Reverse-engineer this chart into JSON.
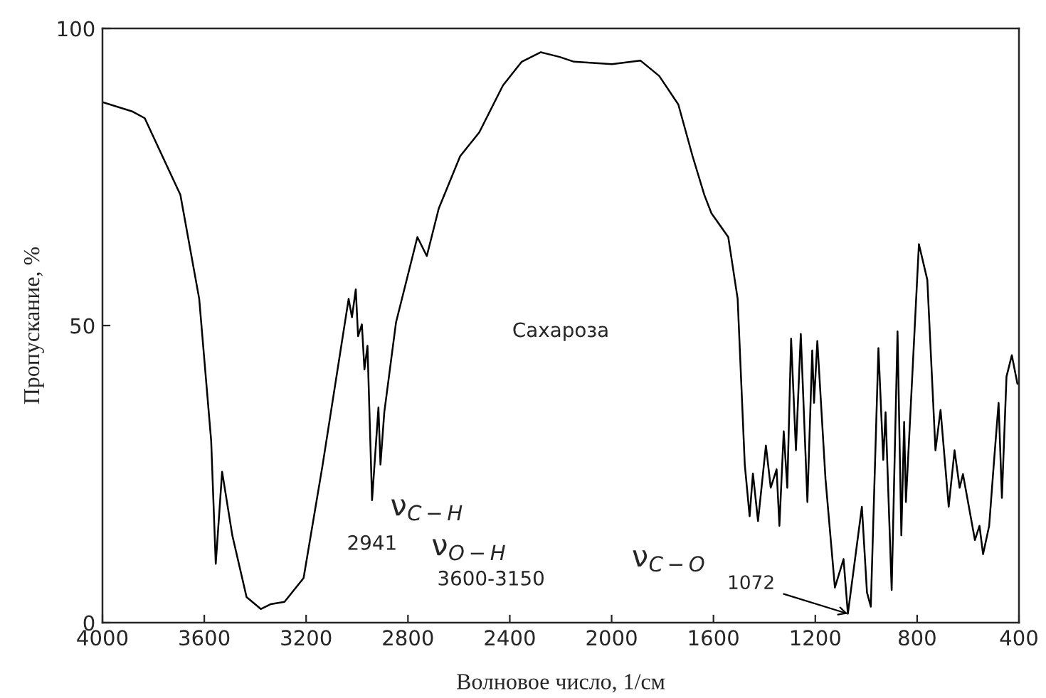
{
  "chart_data": {
    "type": "line",
    "xlabel": "Волновое число, 1/см",
    "ylabel": "Пропускание, %",
    "xlim": [
      4000,
      400
    ],
    "xticks": [
      4000,
      3600,
      3200,
      2800,
      2400,
      2000,
      1600,
      1200,
      800,
      400
    ],
    "ylim": [
      0,
      100
    ],
    "yticks": [
      0,
      50,
      100
    ],
    "grid": false,
    "marker": "none",
    "line_style": "solid",
    "series": [
      {
        "color": "#000000",
        "x": [
          4000,
          3881,
          3834,
          3694,
          3620,
          3573,
          3555,
          3530,
          3490,
          3434,
          3378,
          3340,
          3285,
          3210,
          3135,
          3033,
          3020,
          3005,
          2996,
          2981,
          2971,
          2959,
          2941,
          2916,
          2908,
          2893,
          2847,
          2763,
          2726,
          2679,
          2595,
          2520,
          2427,
          2353,
          2278,
          2204,
          2148,
          1999,
          1887,
          1813,
          1738,
          1682,
          1636,
          1608,
          1542,
          1505,
          1477,
          1458,
          1445,
          1425,
          1394,
          1375,
          1352,
          1341,
          1324,
          1310,
          1295,
          1276,
          1257,
          1231,
          1212,
          1205,
          1192,
          1160,
          1123,
          1089,
          1072,
          1017,
          997,
          982,
          952,
          933,
          924,
          900,
          877,
          862,
          851,
          844,
          793,
          760,
          728,
          708,
          676,
          653,
          633,
          620,
          573,
          555,
          541,
          517,
          499,
          480,
          467,
          449,
          428,
          406
        ],
        "values": [
          87.6,
          86,
          84.9,
          72,
          54.5,
          30.6,
          9.9,
          25.4,
          14.7,
          4.3,
          2.3,
          3.1,
          3.5,
          7.5,
          26.6,
          54.5,
          51.4,
          56.1,
          48.2,
          50.2,
          42.6,
          46.6,
          20.6,
          36.2,
          26.6,
          35.4,
          50.5,
          64.9,
          61.7,
          69.7,
          78.5,
          82.5,
          90.4,
          94.4,
          96,
          95.2,
          94.4,
          94,
          94.6,
          92,
          87.2,
          78.5,
          72,
          68.9,
          64.9,
          54.5,
          26.6,
          17.9,
          25.1,
          17.1,
          29.8,
          22.7,
          25.8,
          16.3,
          32.2,
          22.7,
          47.8,
          29,
          48.6,
          20.3,
          45.8,
          37,
          47.4,
          24.2,
          5.9,
          10.7,
          1.5,
          19.5,
          5.1,
          2.7,
          46.2,
          27.4,
          35.4,
          5.5,
          49,
          14.7,
          33.8,
          20.3,
          63.7,
          57.7,
          29,
          35.8,
          19.5,
          29,
          22.7,
          25,
          13.9,
          16.3,
          11.5,
          16.3,
          26.6,
          37,
          21,
          41.4,
          45,
          40.2
        ]
      }
    ],
    "annotations": [
      "Сахароза",
      "ν$_{C−H}$",
      {
        "text": "2941",
        "x": 2941,
        "y": 20.6
      },
      "ν$_{O−H}$",
      "3600-3150",
      "ν$_{C−O}$",
      {
        "text": "1072",
        "x": 1072,
        "y": 1.5
      }
    ]
  }
}
